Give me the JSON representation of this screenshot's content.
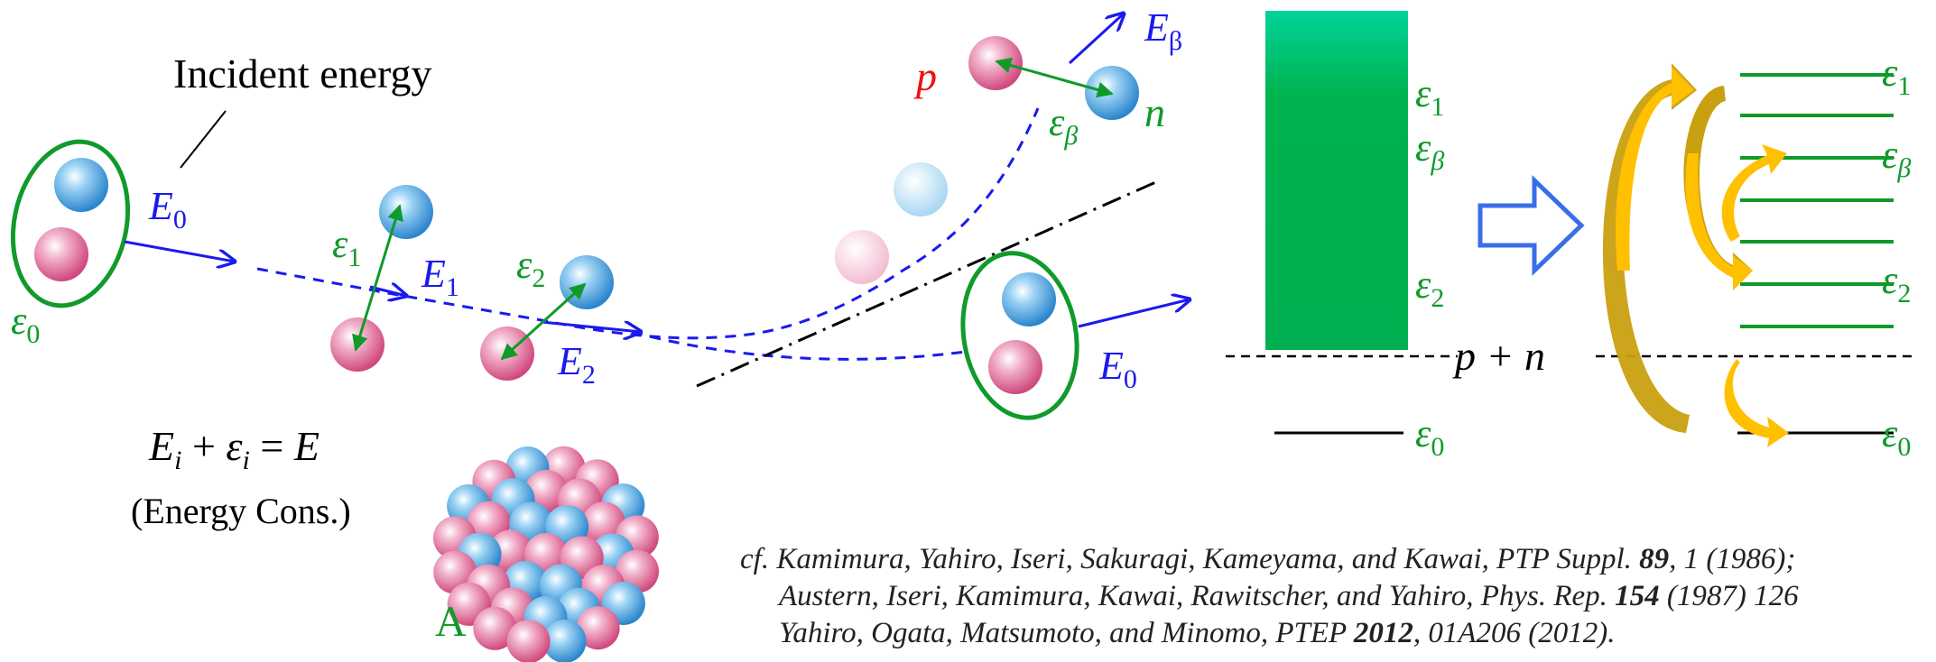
{
  "labels": {
    "incident_energy": "Incident energy",
    "E0_left": "E",
    "E0_left_sub": "0",
    "eps0_left": "ε",
    "eps0_left_sub": "0",
    "eps1_left": "ε",
    "eps1_left_sub": "1",
    "E1": "E",
    "E1_sub": "1",
    "eps2_left": "ε",
    "eps2_left_sub": "2",
    "E2": "E",
    "E2_sub": "2",
    "p": "p",
    "n": "n",
    "E_beta": "E",
    "E_beta_sub": "β",
    "eps_beta_left": "ε",
    "eps_beta_left_sub": "β",
    "E0_right": "E",
    "E0_right_sub": "0",
    "nucleus": "A",
    "eq_E": "E",
    "eq_i1": "i",
    "eq_plus": " + ",
    "eq_eps": "ε",
    "eq_i2": "i",
    "eq_eq": " = ",
    "eq_rhs": "E",
    "energy_cons": "(Energy Cons.)",
    "pn": "p + n",
    "eps1_mid": "ε",
    "eps1_mid_sub": "1",
    "epsb_mid": "ε",
    "epsb_mid_sub": "β",
    "eps2_mid": "ε",
    "eps2_mid_sub": "2",
    "eps0_mid": "ε",
    "eps0_mid_sub": "0",
    "eps1_right": "ε",
    "eps1_right_sub": "1",
    "epsb_right": "ε",
    "epsb_right_sub": "β",
    "eps2_right": "ε",
    "eps2_right_sub": "2",
    "eps0_right": "ε",
    "eps0_right_sub": "0"
  },
  "citation": {
    "l1_a": "cf. Kamimura, Yahiro, Iseri, Sakuragi, Kameyama, and Kawai, PTP Suppl. ",
    "l1_b": "89",
    "l1_c": ", 1 (1986);",
    "l2_a": "Austern, Iseri, Kamimura, Kawai, Rawitscher, and Yahiro, Phys. Rep. ",
    "l2_b": "154",
    "l2_c": " (1987) 126",
    "l3_a": "Yahiro, Ogata, Matsumoto, and Minomo, PTEP ",
    "l3_b": "2012",
    "l3_c": ", 01A206 (2012)."
  },
  "colors": {
    "blue": "#1a1aee",
    "green": "#109a2a",
    "red": "#ee1111",
    "continuum_top": "#00d39a",
    "continuum_bottom": "#00b050",
    "gold": "#c9a010",
    "yellow": "#ffc000",
    "proton": "#e06a9a",
    "neutron": "#3f9bdc"
  }
}
